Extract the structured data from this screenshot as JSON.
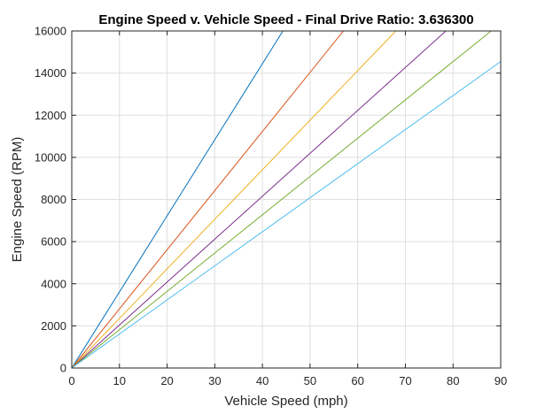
{
  "chart_data": {
    "type": "line",
    "title": "Engine Speed v. Vehicle Speed - Final Drive Ratio: 3.636300",
    "xlabel": "Vehicle Speed (mph)",
    "ylabel": "Engine Speed (RPM)",
    "xlim": [
      0,
      90
    ],
    "ylim": [
      0,
      16000
    ],
    "xticks": [
      0,
      10,
      20,
      30,
      40,
      50,
      60,
      70,
      80,
      90
    ],
    "yticks": [
      0,
      2000,
      4000,
      6000,
      8000,
      10000,
      12000,
      14000,
      16000
    ],
    "grid": true,
    "legend": "none",
    "series": [
      {
        "color": "#0072BD",
        "x": [
          0,
          44.3
        ],
        "y": [
          0,
          16000
        ]
      },
      {
        "color": "#D95319",
        "x": [
          0,
          57.0
        ],
        "y": [
          0,
          16000
        ]
      },
      {
        "color": "#EDB120",
        "x": [
          0,
          68.0
        ],
        "y": [
          0,
          16000
        ]
      },
      {
        "color": "#7E2F8E",
        "x": [
          0,
          78.5
        ],
        "y": [
          0,
          16000
        ]
      },
      {
        "color": "#77AC30",
        "x": [
          0,
          88.0
        ],
        "y": [
          0,
          16000
        ]
      },
      {
        "color": "#4DBEEE",
        "x": [
          0,
          90.0
        ],
        "y": [
          0,
          14550
        ]
      }
    ]
  }
}
